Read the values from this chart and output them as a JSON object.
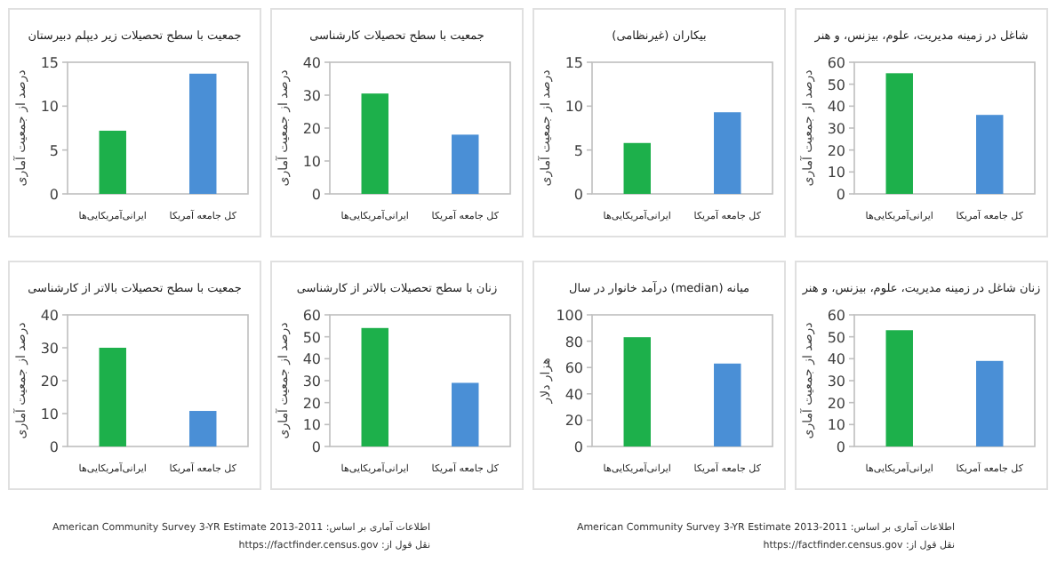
{
  "chart_data": [
    {
      "type": "bar",
      "title": "جمعیت با سطح تحصیلات زیر دیپلم دبیرستان",
      "ylabel": "درصد از جمعیت آماری",
      "categories": [
        "ایرانی‌آمریکایی‌ها",
        "کل جامعه آمریکا"
      ],
      "values": [
        7.2,
        13.7
      ],
      "colors": [
        "#1db04b",
        "#4a8fd6"
      ],
      "ylim": [
        0,
        15
      ],
      "yticks": [
        0,
        5,
        10,
        15
      ]
    },
    {
      "type": "bar",
      "title": "جمعیت با سطح تحصیلات کارشناسی",
      "ylabel": "درصد از جمعیت آماری",
      "categories": [
        "ایرانی‌آمریکایی‌ها",
        "کل جامعه آمریکا"
      ],
      "values": [
        30.5,
        18
      ],
      "colors": [
        "#1db04b",
        "#4a8fd6"
      ],
      "ylim": [
        0,
        40
      ],
      "yticks": [
        0,
        10,
        20,
        30,
        40
      ]
    },
    {
      "type": "bar",
      "title": "بیکاران (غیرنظامی)",
      "ylabel": "درصد از جمعیت آماری",
      "categories": [
        "ایرانی‌آمریکایی‌ها",
        "کل جامعه آمریکا"
      ],
      "values": [
        5.8,
        9.3
      ],
      "colors": [
        "#1db04b",
        "#4a8fd6"
      ],
      "ylim": [
        0,
        15
      ],
      "yticks": [
        0,
        5,
        10,
        15
      ]
    },
    {
      "type": "bar",
      "title": "شاغل در زمینه مدیریت، علوم، بیزنس، و هنر",
      "ylabel": "درصد از جمعیت آماری",
      "categories": [
        "ایرانی‌آمریکایی‌ها",
        "کل جامعه آمریکا"
      ],
      "values": [
        55,
        36
      ],
      "colors": [
        "#1db04b",
        "#4a8fd6"
      ],
      "ylim": [
        0,
        60
      ],
      "yticks": [
        0,
        10,
        20,
        30,
        40,
        50,
        60
      ]
    },
    {
      "type": "bar",
      "title": "جمعیت با سطح تحصیلات بالاتر از کارشناسی",
      "ylabel": "درصد از جمعیت آماری",
      "categories": [
        "ایرانی‌آمریکایی‌ها",
        "کل جامعه آمریکا"
      ],
      "values": [
        30,
        10.8
      ],
      "colors": [
        "#1db04b",
        "#4a8fd6"
      ],
      "ylim": [
        0,
        40
      ],
      "yticks": [
        0,
        10,
        20,
        30,
        40
      ],
      "annotations": [
        "اطلاعات آماری بر اساس: 2011-2013 American Community Survey 3-YR Estimate",
        "نقل قول از: https://factfinder.census.gov"
      ]
    },
    {
      "type": "bar",
      "title": "زنان با سطح تحصیلات بالاتر از کارشناسی",
      "ylabel": "درصد از جمعیت آماری",
      "categories": [
        "ایرانی‌آمریکایی‌ها",
        "کل جامعه آمریکا"
      ],
      "values": [
        54,
        29
      ],
      "colors": [
        "#1db04b",
        "#4a8fd6"
      ],
      "ylim": [
        0,
        60
      ],
      "yticks": [
        0,
        10,
        20,
        30,
        40,
        50,
        60
      ]
    },
    {
      "type": "bar",
      "title": "میانه (median) درآمد خانوار در سال",
      "ylabel": "هزار دلار",
      "categories": [
        "ایرانی‌آمریکایی‌ها",
        "کل جامعه آمریکا"
      ],
      "values": [
        83,
        63
      ],
      "colors": [
        "#1db04b",
        "#4a8fd6"
      ],
      "ylim": [
        0,
        100
      ],
      "yticks": [
        0,
        20,
        40,
        60,
        80,
        100
      ],
      "annotations": [
        "اطلاعات آماری بر اساس: 2011-2013 American Community Survey 3-YR Estimate",
        "نقل قول از: https://factfinder.census.gov"
      ]
    },
    {
      "type": "bar",
      "title": "زنان شاغل در زمینه مدیریت، علوم، بیزنس، و هنر",
      "ylabel": "درصد از جمعیت آماری",
      "categories": [
        "ایرانی‌آمریکایی‌ها",
        "کل جامعه آمریکا"
      ],
      "values": [
        53,
        39
      ],
      "colors": [
        "#1db04b",
        "#4a8fd6"
      ],
      "ylim": [
        0,
        60
      ],
      "yticks": [
        0,
        10,
        20,
        30,
        40,
        50,
        60
      ]
    }
  ]
}
